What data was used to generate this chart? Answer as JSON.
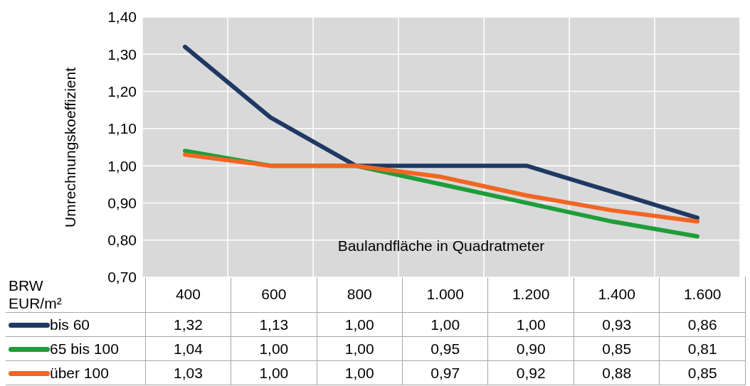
{
  "chart_data": {
    "type": "line",
    "xlabel": "Baulandfläche in Quadratmeter",
    "ylabel": "Umrechnungskoeffizient",
    "legend_title": "BRW EUR/m²",
    "legend": "bottom",
    "grid": true,
    "categories": [
      "400",
      "600",
      "800",
      "1.000",
      "1.200",
      "1.400",
      "1.600"
    ],
    "ylim": [
      0.7,
      1.4
    ],
    "yticks": [
      {
        "value": 0.7,
        "label": "0,70"
      },
      {
        "value": 0.8,
        "label": "0,80"
      },
      {
        "value": 0.9,
        "label": "0,90"
      },
      {
        "value": 1.0,
        "label": "1,00"
      },
      {
        "value": 1.1,
        "label": "1,10"
      },
      {
        "value": 1.2,
        "label": "1,20"
      },
      {
        "value": 1.3,
        "label": "1,30"
      },
      {
        "value": 1.4,
        "label": "1,40"
      }
    ],
    "series": [
      {
        "name": "bis 60",
        "color": "#1f3864",
        "values": [
          1.32,
          1.13,
          1.0,
          1.0,
          1.0,
          0.93,
          0.86
        ],
        "value_labels": [
          "1,32",
          "1,13",
          "1,00",
          "1,00",
          "1,00",
          "0,93",
          "0,86"
        ]
      },
      {
        "name": "65 bis 100",
        "color": "#1f9d3a",
        "values": [
          1.04,
          1.0,
          1.0,
          0.95,
          0.9,
          0.85,
          0.81
        ],
        "value_labels": [
          "1,04",
          "1,00",
          "1,00",
          "0,95",
          "0,90",
          "0,85",
          "0,81"
        ]
      },
      {
        "name": "über 100",
        "color": "#f26522",
        "values": [
          1.03,
          1.0,
          1.0,
          0.97,
          0.92,
          0.88,
          0.85
        ],
        "value_labels": [
          "1,03",
          "1,00",
          "1,00",
          "0,97",
          "0,92",
          "0,88",
          "0,85"
        ]
      }
    ]
  }
}
